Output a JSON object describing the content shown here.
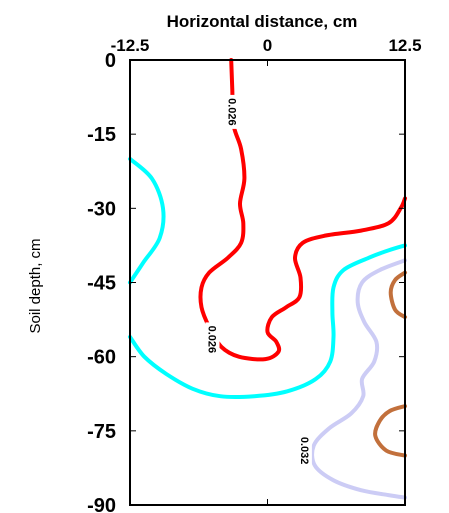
{
  "chart_data": {
    "type": "contour",
    "title": "Horizontal distance, cm",
    "xlabel": "Horizontal distance, cm",
    "ylabel": "Soil depth, cm",
    "xlim": [
      -12.5,
      12.5
    ],
    "ylim": [
      -90,
      0
    ],
    "x_ticks": [
      "-12.5",
      "0",
      "12.5"
    ],
    "y_ticks": [
      "0",
      "-15",
      "-30",
      "-45",
      "-60",
      "-75",
      "-90"
    ],
    "x_axis_position": "top",
    "grid": false,
    "contours": [
      {
        "level": "0.026",
        "color": "#ff0000",
        "label_positions": [
          [
            -3.2,
            -10.5
          ],
          [
            -5.0,
            -56.5
          ]
        ],
        "points": [
          [
            -3.3,
            0
          ],
          [
            -3.2,
            -6
          ],
          [
            -3.1,
            -13
          ],
          [
            -2.4,
            -18
          ],
          [
            -2.1,
            -24
          ],
          [
            -2.5,
            -29
          ],
          [
            -2.2,
            -33
          ],
          [
            -2.4,
            -37
          ],
          [
            -3.6,
            -40
          ],
          [
            -5.3,
            -43
          ],
          [
            -6.0,
            -46
          ],
          [
            -6.0,
            -50
          ],
          [
            -5.3,
            -54
          ],
          [
            -4.2,
            -58
          ],
          [
            -2.6,
            -60
          ],
          [
            -0.2,
            -60.5
          ],
          [
            1.0,
            -59
          ],
          [
            0.8,
            -57
          ],
          [
            0.0,
            -55
          ],
          [
            0.4,
            -52
          ],
          [
            1.7,
            -50
          ],
          [
            2.9,
            -48
          ],
          [
            3.0,
            -44
          ],
          [
            2.5,
            -40
          ],
          [
            3.2,
            -37
          ],
          [
            5.3,
            -35.5
          ],
          [
            8.5,
            -34.5
          ],
          [
            11.0,
            -33
          ],
          [
            12.1,
            -30
          ],
          [
            12.5,
            -28
          ]
        ]
      },
      {
        "level": "",
        "color": "#00ffff",
        "label_positions": [],
        "points": [
          [
            -12.5,
            -20
          ],
          [
            -10.5,
            -24
          ],
          [
            -9.5,
            -30
          ],
          [
            -9.8,
            -36
          ],
          [
            -11.3,
            -41
          ],
          [
            -12.5,
            -45
          ]
        ]
      },
      {
        "level": "",
        "color": "#00ffff",
        "label_positions": [],
        "points": [
          [
            -12.5,
            -56
          ],
          [
            -11.2,
            -60
          ],
          [
            -9.2,
            -63.5
          ],
          [
            -6.8,
            -66.5
          ],
          [
            -4.3,
            -68
          ],
          [
            -1.2,
            -68
          ],
          [
            1.8,
            -67
          ],
          [
            4.4,
            -64.5
          ],
          [
            5.7,
            -61
          ],
          [
            6.0,
            -56
          ],
          [
            5.9,
            -51
          ],
          [
            6.0,
            -46
          ],
          [
            6.9,
            -42.5
          ],
          [
            9.2,
            -40
          ],
          [
            11.0,
            -38.5
          ],
          [
            12.5,
            -37.5
          ]
        ]
      },
      {
        "level": "0.032",
        "color": "#ccccf5",
        "label_positions": [
          [
            3.4,
            -79
          ]
        ],
        "points": [
          [
            12.5,
            -40.5
          ],
          [
            10.2,
            -42.5
          ],
          [
            8.6,
            -45
          ],
          [
            8.2,
            -49
          ],
          [
            8.8,
            -53
          ],
          [
            9.9,
            -57
          ],
          [
            9.7,
            -61
          ],
          [
            8.6,
            -64.5
          ],
          [
            8.7,
            -68
          ],
          [
            7.6,
            -71.5
          ],
          [
            5.6,
            -74.5
          ],
          [
            4.2,
            -78
          ],
          [
            4.3,
            -82
          ],
          [
            6.0,
            -85
          ],
          [
            8.5,
            -87
          ],
          [
            11.0,
            -88
          ],
          [
            12.5,
            -88.5
          ]
        ]
      },
      {
        "level": "",
        "color": "#c2703c",
        "label_positions": [],
        "points": [
          [
            12.5,
            -43
          ],
          [
            11.6,
            -44.5
          ],
          [
            11.2,
            -47
          ],
          [
            11.6,
            -50.5
          ],
          [
            12.5,
            -52
          ]
        ]
      },
      {
        "level": "",
        "color": "#c2703c",
        "label_positions": [],
        "points": [
          [
            12.5,
            -70
          ],
          [
            11.1,
            -71
          ],
          [
            10.2,
            -73
          ],
          [
            9.8,
            -76
          ],
          [
            10.8,
            -79
          ],
          [
            12.5,
            -80
          ]
        ]
      }
    ]
  }
}
